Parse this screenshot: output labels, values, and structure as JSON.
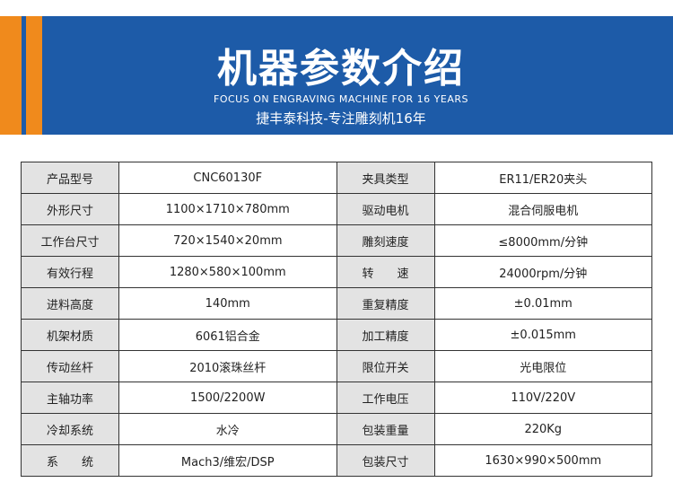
{
  "header": {
    "title": "机器参数介绍",
    "subtitle_en": "FOCUS ON ENGRAVING MACHINE FOR 16 YEARS",
    "subtitle_cn": "捷丰泰科技-专注雕刻机16年"
  },
  "table": {
    "rows": [
      [
        "产品型号",
        "CNC60130F",
        "夹具类型",
        "ER11/ER20夹头"
      ],
      [
        "外形尺寸",
        "1100×1710×780mm",
        "驱动电机",
        "混合伺服电机"
      ],
      [
        "工作台尺寸",
        "720×1540×20mm",
        "雕刻速度",
        "≤8000mm/分钟"
      ],
      [
        "有效行程",
        "1280×580×100mm",
        "转　　速",
        "24000rpm/分钟"
      ],
      [
        "进料高度",
        "140mm",
        "重复精度",
        "±0.01mm"
      ],
      [
        "机架材质",
        "6061铝合金",
        "加工精度",
        "±0.015mm"
      ],
      [
        "传动丝杆",
        "2010滚珠丝杆",
        "限位开关",
        "光电限位"
      ],
      [
        "主轴功率",
        "1500/2200W",
        "工作电压",
        "110V/220V"
      ],
      [
        "冷却系统",
        "水冷",
        "包装重量",
        "220Kg"
      ],
      [
        "系　　统",
        "Mach3/维宏/DSP",
        "包装尺寸",
        "1630×990×500mm"
      ]
    ]
  }
}
